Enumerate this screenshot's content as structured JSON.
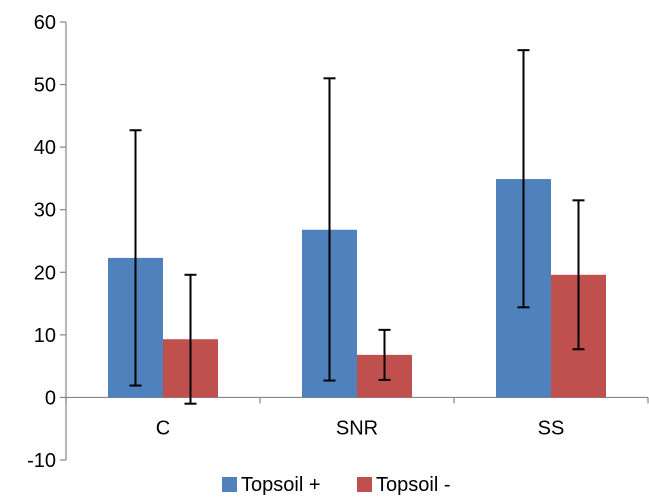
{
  "chart_data": {
    "type": "bar",
    "categories": [
      "C",
      "SNR",
      "SS"
    ],
    "series": [
      {
        "name": "Topsoil +",
        "color": "#4F81BD",
        "values": [
          22.3,
          26.8,
          34.9
        ],
        "error_low": [
          1.9,
          2.7,
          14.4
        ],
        "error_high": [
          42.7,
          51.0,
          55.5
        ]
      },
      {
        "name": "Topsoil -",
        "color": "#C0504D",
        "values": [
          9.3,
          6.8,
          19.6
        ],
        "error_low": [
          -1.0,
          2.8,
          7.7
        ],
        "error_high": [
          19.6,
          10.8,
          31.5
        ]
      }
    ],
    "yticks": [
      "60",
      "50",
      "40",
      "30",
      "20",
      "10",
      "0",
      "-10"
    ],
    "ylim": [
      -10,
      60
    ],
    "legend_position": "bottom",
    "grid": false
  }
}
